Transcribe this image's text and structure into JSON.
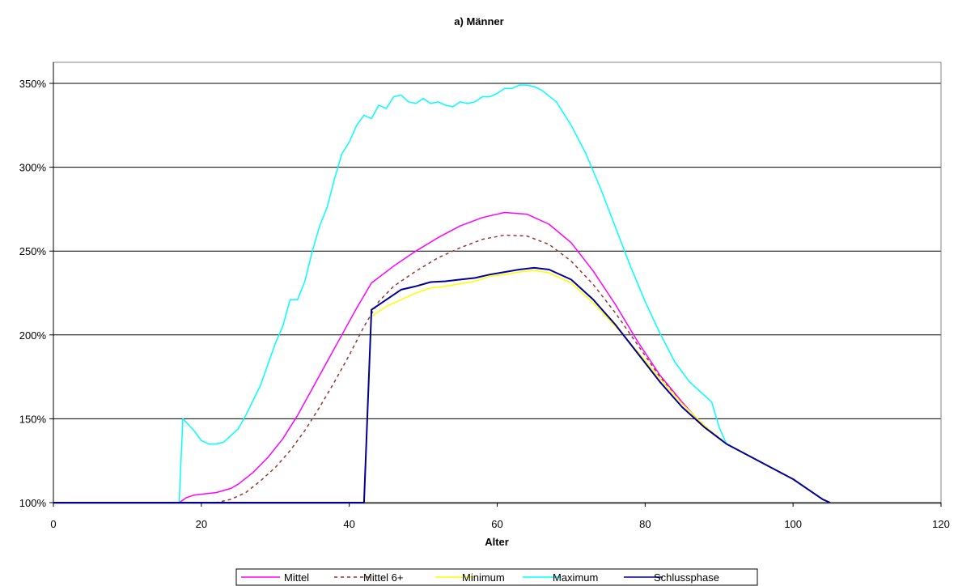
{
  "chart_data": {
    "type": "line",
    "title": "a) Männer",
    "xlabel": "Alter",
    "ylabel": "",
    "xlim": [
      0,
      120
    ],
    "ylim": [
      100,
      350
    ],
    "x_ticks": [
      "0",
      "20",
      "40",
      "60",
      "80",
      "100",
      "120"
    ],
    "y_ticks": [
      "100%",
      "150%",
      "200%",
      "250%",
      "300%",
      "350%"
    ],
    "grid": "horizontal",
    "legend_position": "bottom",
    "series": [
      {
        "name": "Mittel",
        "color": "#ff00ff",
        "dash": "solid",
        "points": [
          [
            0,
            100
          ],
          [
            17,
            100
          ],
          [
            18,
            103
          ],
          [
            19,
            104.5
          ],
          [
            20,
            105
          ],
          [
            22,
            106
          ],
          [
            24,
            108.5
          ],
          [
            25,
            111
          ],
          [
            27,
            118
          ],
          [
            29,
            127
          ],
          [
            31,
            138
          ],
          [
            33,
            152
          ],
          [
            35,
            168
          ],
          [
            37,
            184
          ],
          [
            39,
            200
          ],
          [
            41,
            216
          ],
          [
            43,
            231
          ],
          [
            46,
            241
          ],
          [
            49,
            250
          ],
          [
            52,
            258
          ],
          [
            55,
            265
          ],
          [
            58,
            270
          ],
          [
            61,
            273
          ],
          [
            64,
            272
          ],
          [
            67,
            266
          ],
          [
            70,
            255
          ],
          [
            73,
            238
          ],
          [
            76,
            218
          ],
          [
            79,
            196
          ],
          [
            82,
            176
          ],
          [
            85,
            160
          ],
          [
            88,
            145
          ],
          [
            91,
            135
          ],
          [
            94,
            128
          ],
          [
            97,
            121
          ],
          [
            100,
            114
          ],
          [
            102,
            108
          ],
          [
            104,
            102
          ],
          [
            105,
            100
          ]
        ]
      },
      {
        "name": "Mittel 6+",
        "color": "#993333",
        "dash": "dashed",
        "points": [
          [
            0,
            100
          ],
          [
            22,
            100
          ],
          [
            24,
            102
          ],
          [
            26,
            106
          ],
          [
            28,
            113
          ],
          [
            30,
            121
          ],
          [
            32,
            131
          ],
          [
            34,
            143
          ],
          [
            36,
            157
          ],
          [
            38,
            172
          ],
          [
            40,
            188
          ],
          [
            42,
            205
          ],
          [
            44,
            220
          ],
          [
            46,
            229
          ],
          [
            49,
            238
          ],
          [
            52,
            246
          ],
          [
            55,
            252
          ],
          [
            58,
            257
          ],
          [
            61,
            259.5
          ],
          [
            64,
            259
          ],
          [
            67,
            254
          ],
          [
            70,
            244
          ],
          [
            73,
            230
          ],
          [
            76,
            213
          ],
          [
            79,
            194
          ],
          [
            82,
            175
          ],
          [
            85,
            159
          ],
          [
            88,
            146
          ],
          [
            91,
            135
          ],
          [
            94,
            128
          ],
          [
            97,
            121
          ],
          [
            100,
            114
          ],
          [
            102,
            108
          ],
          [
            104,
            102
          ],
          [
            105,
            100
          ]
        ]
      },
      {
        "name": "Minimum",
        "color": "#ffff00",
        "dash": "solid",
        "points": [
          [
            0,
            100
          ],
          [
            42,
            100
          ],
          [
            43,
            211
          ],
          [
            45,
            217
          ],
          [
            47,
            221
          ],
          [
            49,
            225
          ],
          [
            51,
            228
          ],
          [
            53,
            229
          ],
          [
            55,
            230.5
          ],
          [
            57,
            232
          ],
          [
            59,
            235
          ],
          [
            61,
            236
          ],
          [
            63,
            237.5
          ],
          [
            65,
            238.5
          ],
          [
            67,
            237
          ],
          [
            70,
            231
          ],
          [
            73,
            219
          ],
          [
            76,
            205
          ],
          [
            79,
            190
          ],
          [
            82,
            174
          ],
          [
            85,
            159
          ],
          [
            88,
            146
          ],
          [
            91,
            135
          ],
          [
            94,
            128
          ],
          [
            97,
            121
          ],
          [
            100,
            114
          ],
          [
            102,
            108
          ],
          [
            104,
            102
          ],
          [
            105,
            100
          ]
        ]
      },
      {
        "name": "Maximum",
        "color": "#00ffff",
        "dash": "solid",
        "points": [
          [
            0,
            100
          ],
          [
            17,
            100
          ],
          [
            17.5,
            150
          ],
          [
            19,
            143
          ],
          [
            20,
            137
          ],
          [
            21,
            135
          ],
          [
            22,
            135
          ],
          [
            23,
            136
          ],
          [
            24,
            140
          ],
          [
            25,
            144
          ],
          [
            26,
            152
          ],
          [
            28,
            170
          ],
          [
            30,
            195
          ],
          [
            31,
            205
          ],
          [
            32,
            221
          ],
          [
            33,
            221
          ],
          [
            34,
            232
          ],
          [
            35,
            250
          ],
          [
            36,
            265
          ],
          [
            37,
            276
          ],
          [
            38,
            293
          ],
          [
            39,
            308
          ],
          [
            40,
            315
          ],
          [
            41,
            325
          ],
          [
            42,
            331
          ],
          [
            43,
            329
          ],
          [
            44,
            337
          ],
          [
            45,
            335
          ],
          [
            46,
            342
          ],
          [
            47,
            343
          ],
          [
            48,
            339
          ],
          [
            49,
            338
          ],
          [
            50,
            341
          ],
          [
            51,
            338
          ],
          [
            52,
            339
          ],
          [
            53,
            337
          ],
          [
            54,
            336
          ],
          [
            55,
            339
          ],
          [
            56,
            338
          ],
          [
            57,
            339
          ],
          [
            58,
            342
          ],
          [
            59,
            342
          ],
          [
            60,
            344
          ],
          [
            61,
            347
          ],
          [
            62,
            347
          ],
          [
            63,
            349
          ],
          [
            64,
            349
          ],
          [
            65,
            348
          ],
          [
            66,
            346
          ],
          [
            68,
            339
          ],
          [
            70,
            325
          ],
          [
            72,
            308
          ],
          [
            74,
            287
          ],
          [
            76,
            264
          ],
          [
            78,
            241
          ],
          [
            80,
            220
          ],
          [
            82,
            201
          ],
          [
            84,
            184
          ],
          [
            86,
            172
          ],
          [
            88,
            164
          ],
          [
            89,
            160
          ],
          [
            90,
            145
          ],
          [
            91,
            135
          ],
          [
            94,
            128
          ],
          [
            97,
            121
          ],
          [
            100,
            114
          ],
          [
            102,
            108
          ],
          [
            104,
            102
          ],
          [
            105,
            100
          ]
        ]
      },
      {
        "name": "Schlussphase",
        "color": "#000099",
        "dash": "solid",
        "points": [
          [
            0,
            100
          ],
          [
            42,
            100
          ],
          [
            43,
            215
          ],
          [
            45,
            221
          ],
          [
            47,
            227
          ],
          [
            49,
            229
          ],
          [
            51,
            231.5
          ],
          [
            53,
            232
          ],
          [
            55,
            233
          ],
          [
            57,
            234
          ],
          [
            59,
            236
          ],
          [
            61,
            237.5
          ],
          [
            63,
            239
          ],
          [
            65,
            240
          ],
          [
            67,
            239
          ],
          [
            70,
            233
          ],
          [
            73,
            221
          ],
          [
            76,
            206
          ],
          [
            79,
            189
          ],
          [
            82,
            172
          ],
          [
            85,
            157
          ],
          [
            88,
            145
          ],
          [
            91,
            135
          ],
          [
            94,
            128
          ],
          [
            97,
            121
          ],
          [
            100,
            114
          ],
          [
            102,
            108
          ],
          [
            104,
            102
          ],
          [
            105,
            100
          ]
        ]
      }
    ]
  }
}
